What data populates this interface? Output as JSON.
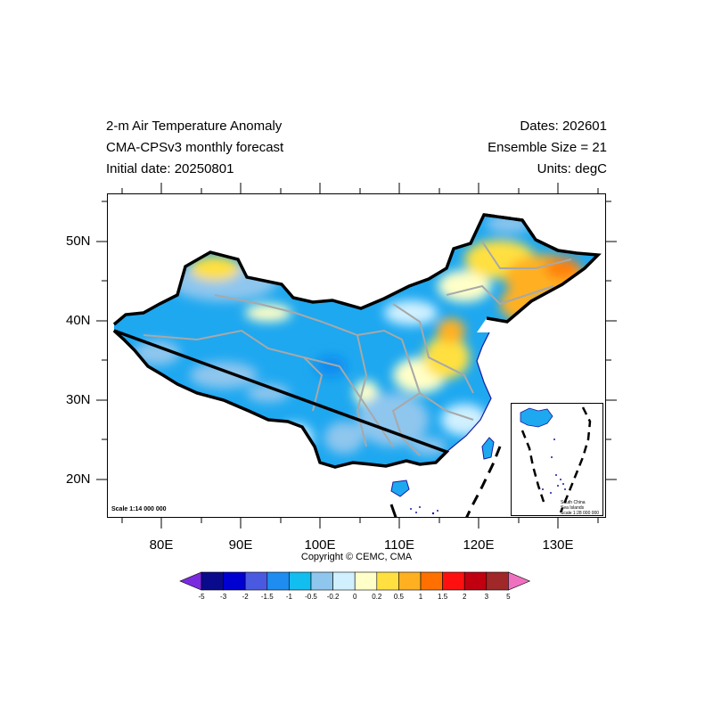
{
  "header": {
    "title": "2-m Air Temperature Anomaly",
    "model": "CMA-CPSv3 monthly forecast",
    "initial_date": "Initial date: 20250801",
    "dates": "Dates: 202601",
    "ensemble": "Ensemble Size = 21",
    "units": "Units: degC"
  },
  "axes": {
    "lat_labels": [
      "50N",
      "40N",
      "30N",
      "20N"
    ],
    "lon_labels": [
      "80E",
      "90E",
      "100E",
      "110E",
      "120E",
      "130E"
    ]
  },
  "map": {
    "scale_text": "Scale 1:14 000 000",
    "inset_lines": [
      "South China",
      "Sea Islands",
      "Scale 1:28 000 000"
    ]
  },
  "colorbar": {
    "labels": [
      "-5",
      "-3",
      "-2",
      "-1.5",
      "-1",
      "-0.5",
      "-0.2",
      "0",
      "0.2",
      "0.5",
      "1",
      "1.5",
      "2",
      "3",
      "5"
    ],
    "colors": [
      "#7a2be0",
      "#0a0a8c",
      "#0000d0",
      "#4a5ae0",
      "#1e8cf0",
      "#12bdf0",
      "#8ec6ee",
      "#d0f0ff",
      "#ffffc8",
      "#ffe040",
      "#ffb020",
      "#ff7000",
      "#ff1010",
      "#c00010",
      "#a02828",
      "#f070c0"
    ]
  },
  "copyright": "Copyright © CEMC, CMA"
}
